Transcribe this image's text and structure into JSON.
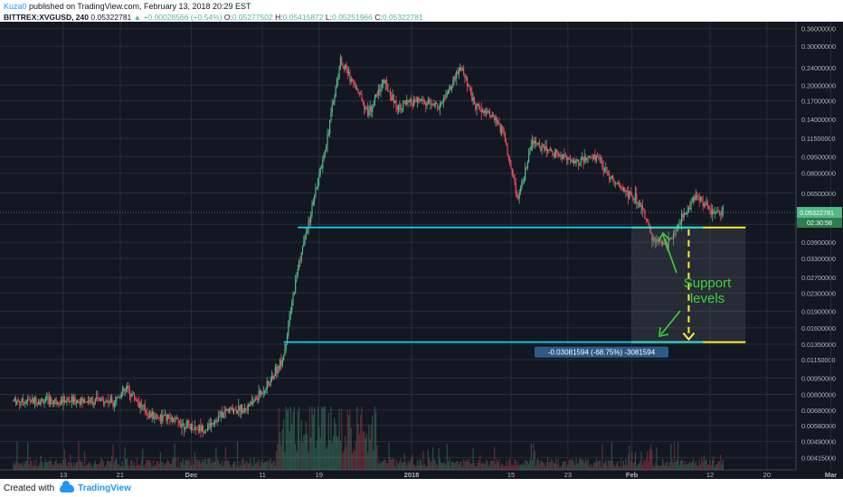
{
  "header": {
    "user": "Kuza0",
    "published": "published on TradingView.com, February 13, 2018 20:29 EST",
    "symbol": "BITTREX:XVGUSD, 240",
    "last": "0.05322781",
    "arrow": "▲",
    "change": "+0.00028566 (+0.54%)",
    "o_label": "O:",
    "o_val": "0.05277502",
    "h_label": "H:",
    "h_val": "0.05415872",
    "l_label": "L:",
    "l_val": "0.05251966",
    "c_label": "C:",
    "c_val": "0.05322781"
  },
  "footer": {
    "created_with": "Created with",
    "brand": "TradingView"
  },
  "colors": {
    "background": "#131722",
    "grid": "#2a2e39",
    "up": "#53b987",
    "down": "#eb4d5c",
    "support": "#00e5ff",
    "annotation": "#3fd13f",
    "measure_arrow": "#ffeb3b",
    "measure_label_bg": "#2e5a87"
  },
  "chart_data": {
    "type": "candlestick",
    "title": "",
    "xlabel": "",
    "ylabel": "",
    "y_scale": "log",
    "ylim": [
      0.0036,
      0.36
    ],
    "y_ticks": [
      "0.36000000",
      "0.30000000",
      "0.24000000",
      "0.20000000",
      "0.17000000",
      "0.14000000",
      "0.11500000",
      "0.09500000",
      "0.08000000",
      "0.06500000",
      "0.04700000",
      "0.03900000",
      "0.03300000",
      "0.02700000",
      "0.02300000",
      "0.01900000",
      "0.01600000",
      "0.01350000",
      "0.01150000",
      "0.00950000",
      "0.00800000",
      "0.00680000",
      "0.00580000",
      "0.00490000",
      "0.00415000"
    ],
    "x_ticks": [
      "13",
      "21",
      "Dec",
      "11",
      "19",
      "2018",
      "15",
      "23",
      "Feb",
      "12",
      "20",
      "Mar",
      "12"
    ],
    "price_path": [
      [
        "11-20",
        0.0075
      ],
      [
        "11-22",
        0.0085
      ],
      [
        "11-25",
        0.0065
      ],
      [
        "11-28",
        0.0062
      ],
      [
        "12-01",
        0.0057
      ],
      [
        "12-03",
        0.0056
      ],
      [
        "12-06",
        0.0068
      ],
      [
        "12-09",
        0.007
      ],
      [
        "12-12",
        0.009
      ],
      [
        "12-14",
        0.012
      ],
      [
        "12-16",
        0.03
      ],
      [
        "12-18",
        0.055
      ],
      [
        "12-20",
        0.11
      ],
      [
        "12-22",
        0.26
      ],
      [
        "12-24",
        0.2
      ],
      [
        "12-26",
        0.15
      ],
      [
        "12-28",
        0.21
      ],
      [
        "12-30",
        0.16
      ],
      [
        "01-02",
        0.17
      ],
      [
        "01-05",
        0.16
      ],
      [
        "01-08",
        0.24
      ],
      [
        "01-10",
        0.16
      ],
      [
        "01-12",
        0.15
      ],
      [
        "01-14",
        0.12
      ],
      [
        "01-16",
        0.06
      ],
      [
        "01-18",
        0.11
      ],
      [
        "01-21",
        0.1
      ],
      [
        "01-24",
        0.09
      ],
      [
        "01-27",
        0.095
      ],
      [
        "01-30",
        0.07
      ],
      [
        "02-02",
        0.06
      ],
      [
        "02-04",
        0.04
      ],
      [
        "02-06",
        0.038
      ],
      [
        "02-08",
        0.05
      ],
      [
        "02-10",
        0.064
      ],
      [
        "02-12",
        0.054
      ],
      [
        "02-14",
        0.0532
      ]
    ],
    "last_price": "0.05322781",
    "countdown": "02:30:58",
    "support_levels": [
      0.0455,
      0.0138
    ],
    "annotation": "Support\nlevels",
    "measure_label": "-0.03081594 (-68.75%) -3081594"
  }
}
